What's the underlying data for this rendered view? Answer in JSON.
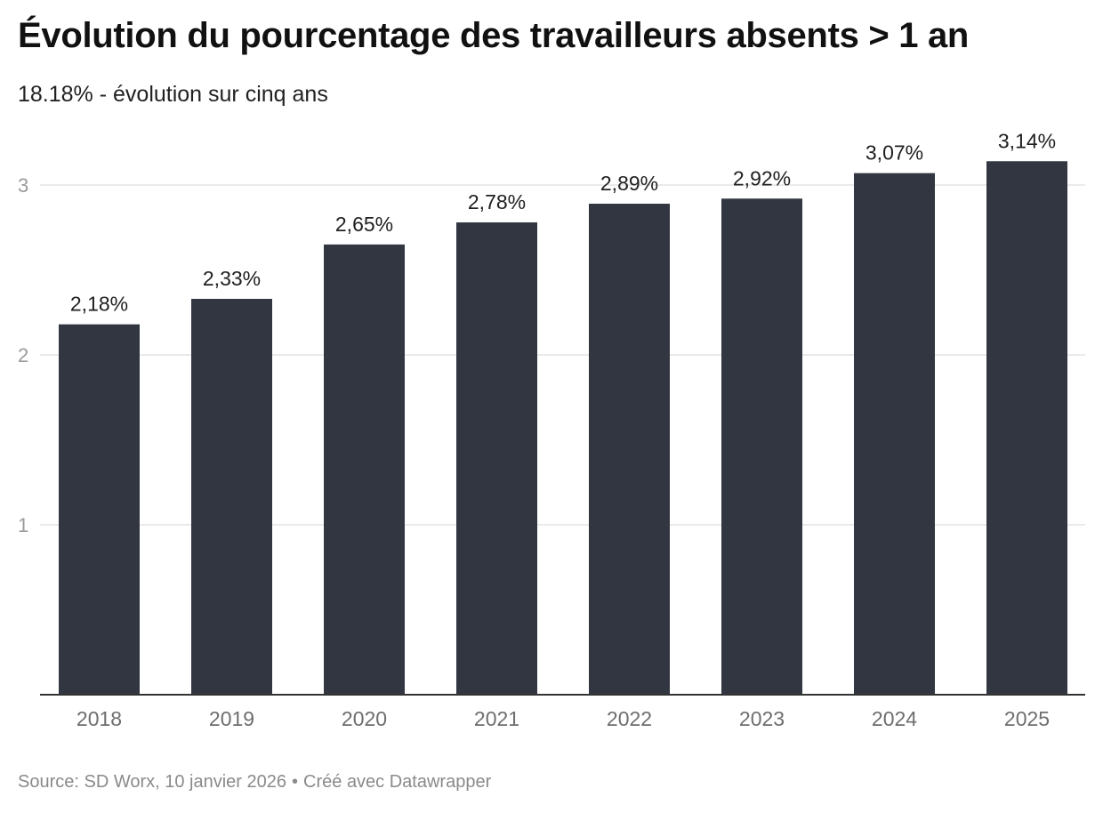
{
  "header": {
    "title": "Évolution du pourcentage des travailleurs absents > 1 an",
    "subtitle": "18.18% - évolution sur cinq ans"
  },
  "footer": {
    "source": "Source: SD Worx, 10 janvier 2026",
    "separator": "•",
    "credit": "Créé avec Datawrapper"
  },
  "colors": {
    "bar": "#313641",
    "grid": "#e3e3e3",
    "axis": "#333333"
  },
  "chart_data": {
    "type": "bar",
    "title": "Évolution du pourcentage des travailleurs absents > 1 an",
    "subtitle": "18.18% - évolution sur cinq ans",
    "xlabel": "",
    "ylabel": "",
    "categories": [
      "2018",
      "2019",
      "2020",
      "2021",
      "2022",
      "2023",
      "2024",
      "2025"
    ],
    "values": [
      2.18,
      2.33,
      2.65,
      2.78,
      2.89,
      2.92,
      3.07,
      3.14
    ],
    "value_labels": [
      "2,18%",
      "2,33%",
      "2,65%",
      "2,78%",
      "2,89%",
      "2,92%",
      "3,07%",
      "3,14%"
    ],
    "ylim": [
      0,
      3.2
    ],
    "yticks": [
      1,
      2,
      3
    ],
    "grid": true,
    "legend": "none"
  }
}
